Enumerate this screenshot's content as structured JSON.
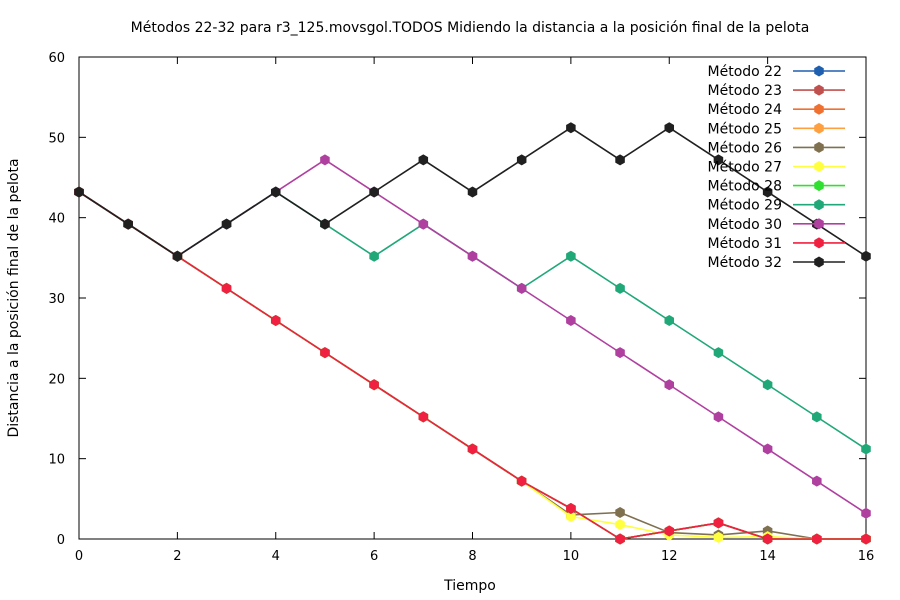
{
  "chart_data": {
    "type": "line",
    "title": "Métodos 22-32 para r3_125.movsgol.TODOS Midiendo la distancia a la posición final de la pelota",
    "xlabel": "Tiempo",
    "ylabel": "Distancia a la posición final de la pelota",
    "xlim": [
      0,
      16
    ],
    "ylim": [
      0,
      60
    ],
    "xticks": [
      0,
      2,
      4,
      6,
      8,
      10,
      12,
      14,
      16
    ],
    "yticks": [
      0,
      10,
      20,
      30,
      40,
      50,
      60
    ],
    "grid": false,
    "legend_position": "top-right",
    "x": [
      0,
      1,
      2,
      3,
      4,
      5,
      6,
      7,
      8,
      9,
      10,
      11,
      12,
      13,
      14,
      15,
      16
    ],
    "series": [
      {
        "name": "Método 22",
        "color": "#1f5fb0",
        "values": [
          43.2,
          39.2,
          35.2,
          31.2,
          27.2,
          23.2,
          19.2,
          15.2,
          11.2,
          7.2,
          3.8,
          0.0,
          1.0,
          2.0,
          0.0,
          0.0,
          0.0
        ]
      },
      {
        "name": "Método 23",
        "color": "#c0504d",
        "values": [
          43.2,
          39.2,
          35.2,
          31.2,
          27.2,
          23.2,
          19.2,
          15.2,
          11.2,
          7.2,
          3.8,
          0.0,
          1.0,
          2.0,
          0.0,
          0.0,
          0.0
        ]
      },
      {
        "name": "Método 24",
        "color": "#f07030",
        "values": [
          43.2,
          39.2,
          35.2,
          31.2,
          27.2,
          23.2,
          19.2,
          15.2,
          11.2,
          7.2,
          3.8,
          0.0,
          1.0,
          2.0,
          0.0,
          0.0,
          0.0
        ]
      },
      {
        "name": "Método 25",
        "color": "#ffa040",
        "values": [
          43.2,
          39.2,
          35.2,
          31.2,
          27.2,
          23.2,
          19.2,
          15.2,
          11.2,
          7.2,
          3.8,
          0.0,
          1.0,
          2.0,
          0.0,
          0.0,
          0.0
        ]
      },
      {
        "name": "Método 26",
        "color": "#7f7050",
        "values": [
          43.2,
          39.2,
          35.2,
          31.2,
          27.2,
          23.2,
          19.2,
          15.2,
          11.2,
          7.2,
          3.0,
          3.3,
          0.8,
          0.5,
          1.0,
          0.0,
          0.0
        ]
      },
      {
        "name": "Método 27",
        "color": "#ffff40",
        "values": [
          43.2,
          39.2,
          35.2,
          31.2,
          27.2,
          23.2,
          19.2,
          15.2,
          11.2,
          7.2,
          2.8,
          1.8,
          0.5,
          0.2,
          0.3,
          0.0,
          0.0
        ]
      },
      {
        "name": "Método 28",
        "color": "#30e030",
        "values": [
          43.2,
          39.2,
          35.2,
          31.2,
          27.2,
          23.2,
          19.2,
          15.2,
          11.2,
          7.2,
          3.8,
          0.0,
          1.0,
          2.0,
          0.0,
          0.0,
          0.0
        ]
      },
      {
        "name": "Método 29",
        "color": "#20a878",
        "values": [
          43.2,
          39.2,
          35.2,
          39.2,
          43.2,
          39.2,
          35.2,
          39.2,
          35.2,
          31.2,
          35.2,
          31.2,
          27.2,
          23.2,
          19.2,
          15.2,
          11.2
        ]
      },
      {
        "name": "Método 30",
        "color": "#b040a0",
        "values": [
          43.2,
          39.2,
          35.2,
          39.2,
          43.2,
          47.2,
          43.2,
          39.2,
          35.2,
          31.2,
          27.2,
          23.2,
          19.2,
          15.2,
          11.2,
          7.2,
          3.2
        ]
      },
      {
        "name": "Método 31",
        "color": "#f02040",
        "values": [
          43.2,
          39.2,
          35.2,
          31.2,
          27.2,
          23.2,
          19.2,
          15.2,
          11.2,
          7.2,
          3.8,
          0.0,
          1.0,
          2.0,
          0.0,
          0.0,
          0.0
        ]
      },
      {
        "name": "Método 32",
        "color": "#202020",
        "values": [
          43.2,
          39.2,
          35.2,
          39.2,
          43.2,
          39.2,
          43.2,
          47.2,
          43.2,
          47.2,
          51.2,
          47.2,
          51.2,
          47.2,
          43.2,
          39.2,
          35.2
        ]
      }
    ]
  }
}
